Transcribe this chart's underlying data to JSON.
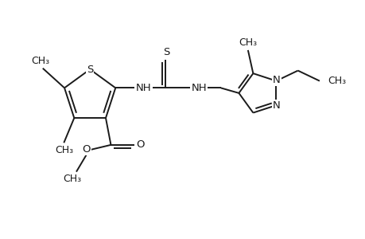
{
  "bg_color": "#ffffff",
  "line_color": "#1a1a1a",
  "line_width": 1.4,
  "font_size": 9.5,
  "figsize": [
    4.6,
    3.0
  ],
  "dpi": 100,
  "xlim": [
    -0.2,
    6.8
  ],
  "ylim": [
    -0.8,
    3.0
  ]
}
